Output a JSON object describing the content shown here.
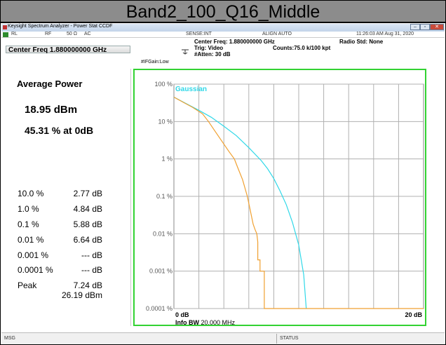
{
  "banner": {
    "title": "Band2_100_Q16_Middle"
  },
  "window": {
    "title": "Keysight Spectrum Analyzer - Power Stat CCDF",
    "buttons": {
      "minimize": "–",
      "maximize": "▫",
      "close": "✕"
    }
  },
  "top_info": {
    "rl": "RL",
    "rf": "RF",
    "impedance": "50 Ω",
    "coupling": "AC",
    "sense": "SENSE:INT",
    "align": "ALIGN AUTO",
    "timestamp": "11:26:03 AM Aug 31, 2020",
    "center_freq_box": "Center Freq 1.880000000 GHz",
    "center_freq": "Center Freq: 1.880000000 GHz",
    "trig": "Trig: Video",
    "counts": "Counts:75.0 k/100 kpt",
    "radio_std": "Radio Std: None",
    "if_gain": "#IFGain:Low",
    "atten": "#Atten: 30 dB"
  },
  "results": {
    "avg_power_label": "Average Power",
    "avg_power_value": "18.95 dBm",
    "avg_pct": "45.31 % at 0dB",
    "rows": [
      {
        "label": "10.0 %",
        "value": "2.77 dB"
      },
      {
        "label": "1.0 %",
        "value": "4.84 dB"
      },
      {
        "label": "0.1 %",
        "value": "5.88 dB"
      },
      {
        "label": "0.01 %",
        "value": "6.64 dB"
      },
      {
        "label": "0.001 %",
        "value": "--- dB"
      },
      {
        "label": "0.0001 %",
        "value": "--- dB"
      }
    ],
    "peak_label": "Peak",
    "peak_db": "7.24 dB",
    "peak_dbm": "26.19 dBm"
  },
  "bottom": {
    "msg": "MSG",
    "status": "STATUS"
  },
  "colors": {
    "measured": "#f0a030",
    "gaussian": "#30d8e8",
    "frame": "#32d232"
  },
  "chart_data": {
    "type": "line",
    "title": "",
    "legend": "Gaussian",
    "x_start_label": "0 dB",
    "x_end_label": "20 dB",
    "xlim": [
      0,
      20
    ],
    "y_scale": "log",
    "ylim": [
      0.0001,
      100
    ],
    "y_ticks": [
      "100 %",
      "10 %",
      "1 %",
      "0.1 %",
      "0.01 %",
      "0.001 %",
      "0.0001 %"
    ],
    "y_tick_values": [
      100,
      10,
      1,
      0.1,
      0.01,
      0.001,
      0.0001
    ],
    "info_bw_label": "Info BW",
    "info_bw_value": "20.000 MHz",
    "series": [
      {
        "name": "Gaussian",
        "x": [
          0,
          1,
          2,
          3,
          4,
          5,
          6,
          7,
          7.5,
          8,
          8.5,
          9,
          9.5,
          10,
          10.4,
          10.6
        ],
        "values": [
          45,
          30,
          20,
          13,
          7.5,
          4.2,
          2.0,
          0.9,
          0.55,
          0.3,
          0.14,
          0.06,
          0.02,
          0.005,
          0.0008,
          0.0001
        ]
      },
      {
        "x": [
          0,
          0.8,
          1.5,
          2.3,
          2.77,
          3.3,
          3.9,
          4.4,
          4.84,
          5.1,
          5.5,
          5.88,
          6.1,
          6.35,
          6.5,
          6.64,
          6.72,
          6.72,
          6.9,
          6.9,
          7.24,
          7.24,
          20
        ],
        "values": [
          45,
          32,
          24,
          16,
          10,
          5.5,
          2.8,
          1.6,
          1.0,
          0.6,
          0.28,
          0.1,
          0.045,
          0.018,
          0.013,
          0.01,
          0.006,
          0.002,
          0.002,
          0.001,
          0.001,
          0.0001,
          0.0001
        ]
      }
    ]
  }
}
